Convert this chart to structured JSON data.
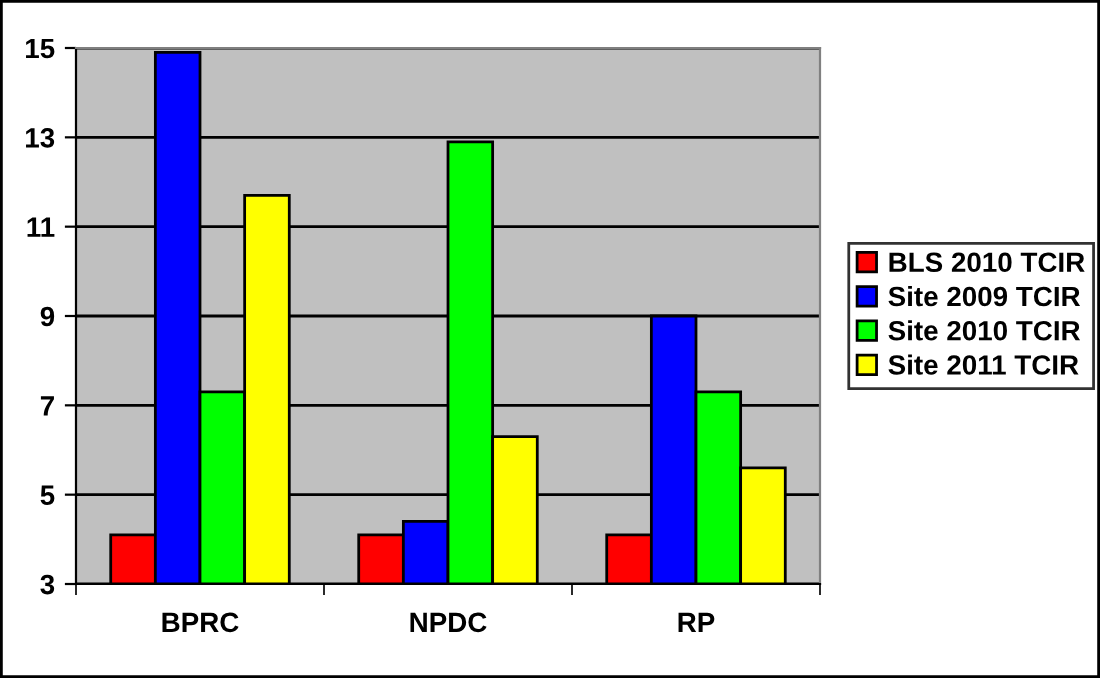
{
  "chart_data": {
    "type": "bar",
    "categories": [
      "BPRC",
      "NPDC",
      "RP"
    ],
    "series": [
      {
        "name": "BLS 2010 TCIR",
        "color": "#ff0000",
        "values": [
          4.1,
          4.1,
          4.1
        ]
      },
      {
        "name": "Site 2009 TCIR",
        "color": "#0000ff",
        "values": [
          14.9,
          4.4,
          9.0
        ]
      },
      {
        "name": "Site 2010 TCIR",
        "color": "#00ff00",
        "values": [
          7.3,
          12.9,
          7.3
        ]
      },
      {
        "name": "Site 2011 TCIR",
        "color": "#ffff00",
        "values": [
          11.7,
          6.3,
          5.6
        ]
      }
    ],
    "ylim": [
      3,
      15
    ],
    "yticks": [
      3,
      5,
      7,
      9,
      11,
      13,
      15
    ],
    "grid": "y",
    "legend": "right"
  }
}
